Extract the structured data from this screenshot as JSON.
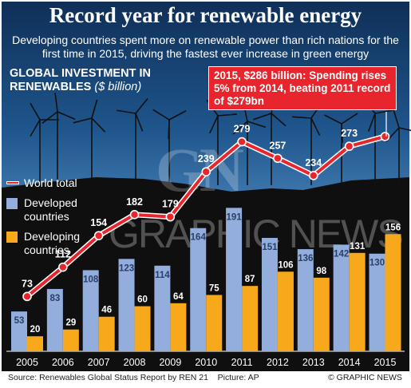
{
  "header": {
    "title": "Record year for renewable energy",
    "subtitle": "Developing countries spent more on renewable power than rich nations for the first time in 2015, driving the fastest ever increase in green energy"
  },
  "chart_heading": {
    "label": "GLOBAL INVESTMENT IN RENEWABLES",
    "unit": "($ billion)"
  },
  "callout": {
    "text": "2015, $286 billion: Spending rises 5% from 2014, beating 2011 record of $279bn"
  },
  "watermark": {
    "logo": "GN",
    "brand": "GRAPHIC NEWS"
  },
  "legend": {
    "world_total": "World total",
    "developed": "Developed countries",
    "developing": "Developing countries"
  },
  "footer": {
    "source": "Source: Renewables Global Status Report by REN 21",
    "picture": "Picture: AP",
    "credit": "© GRAPHIC NEWS"
  },
  "colors": {
    "world_total": "#e8252c",
    "developed": "#93aedd",
    "developing": "#f7a81b"
  },
  "chart_data": {
    "type": "bar",
    "categories": [
      "2005",
      "2006",
      "2007",
      "2008",
      "2009",
      "2010",
      "2011",
      "2012",
      "2013",
      "2014",
      "2015"
    ],
    "series": [
      {
        "name": "Developed countries",
        "values": [
          53,
          83,
          108,
          123,
          114,
          164,
          191,
          151,
          136,
          142,
          130
        ]
      },
      {
        "name": "Developing countries",
        "values": [
          20,
          29,
          46,
          60,
          64,
          75,
          87,
          106,
          98,
          131,
          156
        ]
      },
      {
        "name": "World total",
        "values": [
          73,
          112,
          154,
          182,
          179,
          239,
          279,
          257,
          234,
          273,
          286
        ]
      }
    ],
    "value_labels_total": [
      "73",
      "112",
      "154",
      "182",
      "179",
      "239",
      "279",
      "257",
      "234",
      "273",
      ""
    ],
    "title": "GLOBAL INVESTMENT IN RENEWABLES",
    "ylabel": "$ billion",
    "grid": false,
    "legend": "left"
  }
}
